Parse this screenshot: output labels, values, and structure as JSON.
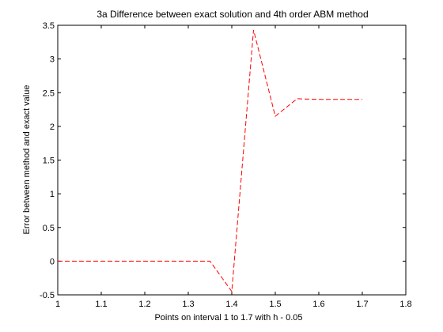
{
  "chart_data": {
    "type": "line",
    "title": "3a Difference between exact solution and 4th order ABM method",
    "xlabel": "Points on interval 1 to 1.7 with h - 0.05",
    "ylabel": "Error between method and exact value",
    "xlim": [
      1,
      1.8
    ],
    "ylim": [
      -0.5,
      3.5
    ],
    "xticks": [
      "1",
      "1.1",
      "1.2",
      "1.3",
      "1.4",
      "1.5",
      "1.6",
      "1.7",
      "1.8"
    ],
    "yticks": [
      "-0.5",
      "0",
      "0.5",
      "1",
      "1.5",
      "2",
      "2.5",
      "3",
      "3.5"
    ],
    "grid": false,
    "series": [
      {
        "color": "#ff0000",
        "line_style": "dashed",
        "x": [
          1,
          1.05,
          1.1,
          1.15,
          1.2,
          1.25,
          1.3,
          1.35,
          1.4,
          1.45,
          1.5,
          1.55,
          1.6,
          1.65,
          1.7
        ],
        "y": [
          0,
          0,
          0,
          0,
          0,
          0,
          0,
          0,
          -0.45,
          3.43,
          2.15,
          2.41,
          2.4,
          2.4,
          2.4
        ]
      }
    ]
  }
}
